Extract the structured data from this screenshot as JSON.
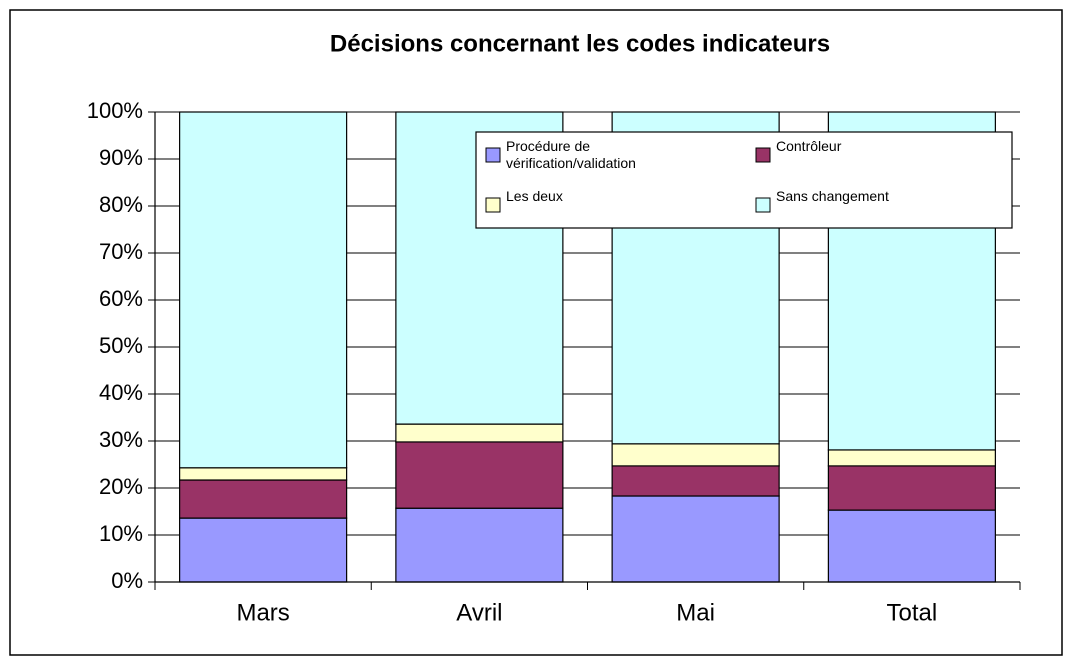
{
  "chart_data": {
    "type": "stacked-bar",
    "title": "Décisions concernant les codes indicateurs",
    "categories": [
      "Mars",
      "Avril",
      "Mai",
      "Total"
    ],
    "series": [
      {
        "name": "Procédure de vérification/validation",
        "color": "#9999ff",
        "values": [
          13.6,
          15.7,
          18.3,
          15.3
        ]
      },
      {
        "name": "Contrôleur",
        "color": "#993366",
        "values": [
          8.1,
          14.1,
          6.4,
          9.4
        ]
      },
      {
        "name": "Les deux",
        "color": "#ffffcc",
        "values": [
          2.6,
          3.8,
          4.7,
          3.4
        ]
      },
      {
        "name": "Sans changement",
        "color": "#ccffff",
        "values": [
          75.7,
          66.4,
          70.6,
          71.9
        ]
      }
    ],
    "ylim": [
      0,
      100
    ],
    "yticks": [
      {
        "value": 0,
        "label": "0%"
      },
      {
        "value": 10,
        "label": "10%"
      },
      {
        "value": 20,
        "label": "20%"
      },
      {
        "value": 30,
        "label": "30%"
      },
      {
        "value": 40,
        "label": "40%"
      },
      {
        "value": 50,
        "label": "50%"
      },
      {
        "value": 60,
        "label": "60%"
      },
      {
        "value": 70,
        "label": "70%"
      },
      {
        "value": 80,
        "label": "80%"
      },
      {
        "value": 90,
        "label": "90%"
      },
      {
        "value": 100,
        "label": "100%"
      }
    ],
    "grid": true,
    "legend": "top-right"
  }
}
